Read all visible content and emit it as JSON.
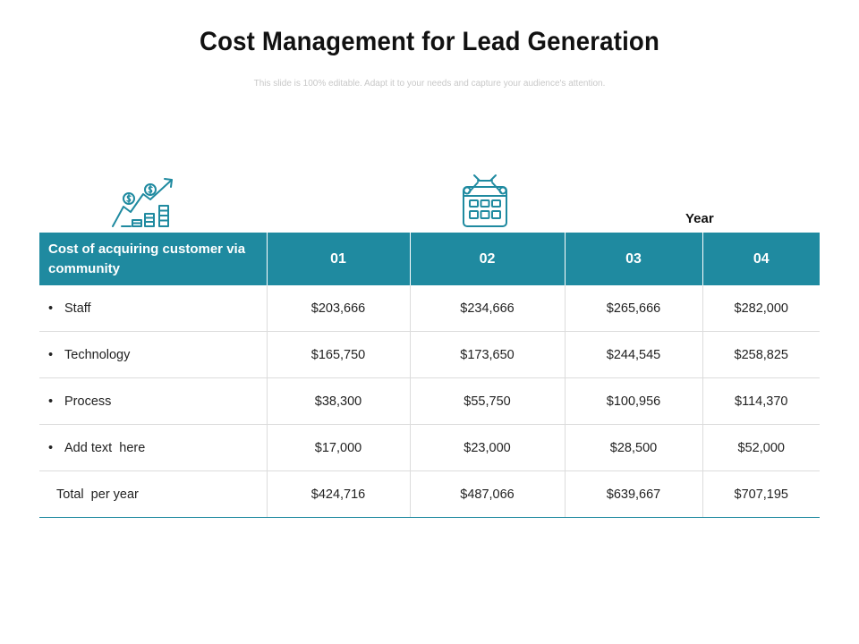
{
  "slide": {
    "title": "Cost Management for Lead Generation",
    "subtitle": "This slide is 100% editable. Adapt it to your needs and capture your audience's attention."
  },
  "icons": {
    "left": "growth-chart-dollar-icon",
    "center": "calendar-icon"
  },
  "year_label": "Year",
  "table": {
    "header_label": "Cost of acquiring customer via community",
    "years": [
      "01",
      "02",
      "03",
      "04"
    ],
    "rows": [
      {
        "label": "Staff",
        "values": [
          "$203,666",
          "$234,666",
          "$265,666",
          "$282,000"
        ]
      },
      {
        "label": "Technology",
        "values": [
          "$165,750",
          "$173,650",
          "$244,545",
          "$258,825"
        ]
      },
      {
        "label": "Process",
        "values": [
          "$38,300",
          "$55,750",
          "$100,956",
          "$114,370"
        ]
      },
      {
        "label": "Add text  here",
        "values": [
          "$17,000",
          "$23,000",
          "$28,500",
          "$52,000"
        ]
      }
    ],
    "total": {
      "label": "Total  per year",
      "values": [
        "$424,716",
        "$487,066",
        "$639,667",
        "$707,195"
      ]
    }
  },
  "colors": {
    "header_bg": "#1f8aa0",
    "header_text": "#ffffff",
    "icon_stroke": "#1f8aa0",
    "subtitle": "#c8c8c8"
  }
}
